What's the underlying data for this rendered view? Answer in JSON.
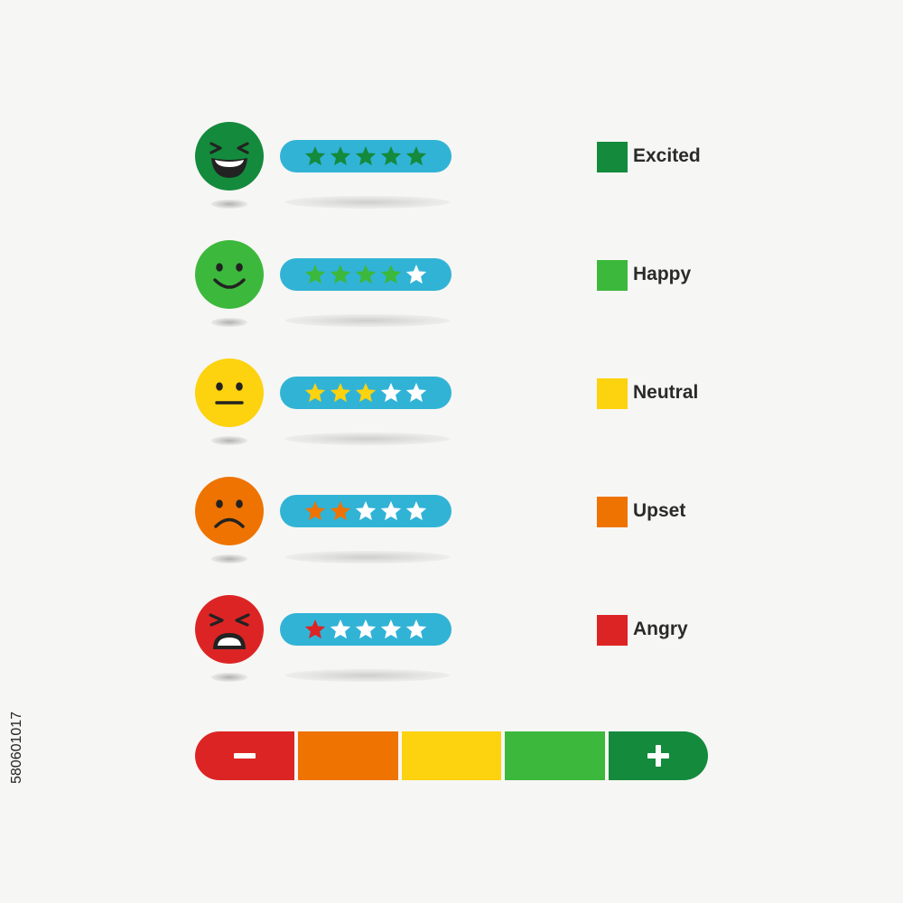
{
  "moods": [
    {
      "id": "excited",
      "label": "Excited",
      "color": "#148a3c",
      "star_color": "#148a3c",
      "rating": 5,
      "max": 5,
      "face": "laughing-face-icon"
    },
    {
      "id": "happy",
      "label": "Happy",
      "color": "#3cb83c",
      "star_color": "#3cb83c",
      "rating": 4,
      "max": 5,
      "face": "smiling-face-icon"
    },
    {
      "id": "neutral",
      "label": "Neutral",
      "color": "#fdd20e",
      "star_color": "#fdd20e",
      "rating": 3,
      "max": 5,
      "face": "neutral-face-icon"
    },
    {
      "id": "upset",
      "label": "Upset",
      "color": "#ee7300",
      "star_color": "#ee7300",
      "rating": 2,
      "max": 5,
      "face": "frowning-face-icon"
    },
    {
      "id": "angry",
      "label": "Angry",
      "color": "#dd2424",
      "star_color": "#dd2424",
      "rating": 1,
      "max": 5,
      "face": "angry-face-icon"
    }
  ],
  "scale": {
    "segments": [
      "#dd2424",
      "#ee7300",
      "#fdd20e",
      "#3cb83c",
      "#148a3c"
    ],
    "minus_icon": "minus-icon",
    "plus_icon": "plus-icon"
  },
  "colors": {
    "pill": "#31b3d6",
    "empty_star": "#ffffff",
    "background": "#f6f6f4"
  },
  "stock_id": "580601017"
}
